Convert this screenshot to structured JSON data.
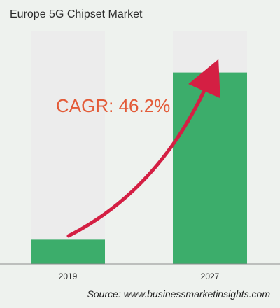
{
  "title": "Europe 5G Chipset Market",
  "source": "Source: www.businessmarketinsights.com",
  "annotation": "CAGR: 46.2%",
  "colors": {
    "bar_fill": "#3cad6b",
    "bar_track": "#ececec",
    "arrow": "#d41f43",
    "annotation": "#e35a37",
    "axis": "#8c8c8c"
  },
  "chart_data": {
    "type": "bar",
    "title": "Europe 5G Chipset Market",
    "categories": [
      "2019",
      "2027"
    ],
    "values": [
      10.4,
      82.1
    ],
    "ylim": [
      0,
      100
    ],
    "xlabel": "",
    "ylabel": "",
    "grid": false,
    "annotations": [
      "CAGR: 46.2%"
    ]
  }
}
